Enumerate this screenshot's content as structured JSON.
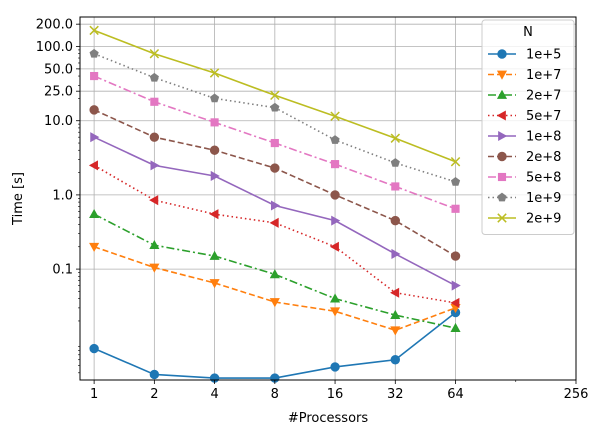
{
  "chart_data": {
    "type": "line",
    "xlabel": "#Processors",
    "ylabel": "Time [s]",
    "x_scale": "log2",
    "y_scale": "log",
    "x_ticks": [
      1,
      2,
      4,
      8,
      16,
      32,
      64,
      256
    ],
    "x_tick_labels": [
      "1",
      "2",
      "4",
      "8",
      "16",
      "32",
      "64",
      "256"
    ],
    "xlim": [
      0.85,
      256
    ],
    "y_ticks": [
      0.1,
      1,
      10,
      25,
      50,
      100,
      200
    ],
    "y_tick_labels": [
      "0.1",
      "1.0",
      "10.0",
      "25.0",
      "50.0",
      "100.0",
      "200.0"
    ],
    "ylim": [
      0.0032,
      250
    ],
    "grid": true,
    "legend": {
      "title": "N",
      "placement": "upper-right"
    },
    "x": [
      1,
      2,
      4,
      8,
      16,
      32,
      64
    ],
    "series": [
      {
        "name": "1e+5",
        "color": "#1f77b4",
        "linestyle": "solid",
        "marker": "circle",
        "values": [
          0.0085,
          0.0038,
          0.0034,
          0.0034,
          0.0048,
          0.006,
          0.026
        ]
      },
      {
        "name": "1e+7",
        "color": "#ff7f0e",
        "linestyle": "dashed",
        "marker": "triangle-down",
        "values": [
          0.2,
          0.105,
          0.065,
          0.036,
          0.027,
          0.015,
          0.03
        ]
      },
      {
        "name": "2e+7",
        "color": "#2ca02c",
        "linestyle": "dashdot",
        "marker": "triangle-up",
        "values": [
          0.55,
          0.21,
          0.15,
          0.085,
          0.04,
          0.024,
          0.016
        ]
      },
      {
        "name": "5e+7",
        "color": "#d62728",
        "linestyle": "dotted",
        "marker": "triangle-left",
        "values": [
          2.5,
          0.85,
          0.55,
          0.42,
          0.2,
          0.048,
          0.035
        ]
      },
      {
        "name": "1e+8",
        "color": "#9467bd",
        "linestyle": "solid",
        "marker": "triangle-right",
        "values": [
          6.0,
          2.5,
          1.8,
          0.72,
          0.45,
          0.16,
          0.06
        ]
      },
      {
        "name": "2e+8",
        "color": "#8c564b",
        "linestyle": "dashed",
        "marker": "circle",
        "values": [
          14.0,
          6.0,
          4.0,
          2.3,
          1.0,
          0.45,
          0.15
        ]
      },
      {
        "name": "5e+8",
        "color": "#e377c2",
        "linestyle": "dashdot",
        "marker": "square",
        "values": [
          40.0,
          18.0,
          9.5,
          5.0,
          2.6,
          1.3,
          0.65
        ]
      },
      {
        "name": "1e+9",
        "color": "#7f7f7f",
        "linestyle": "dotted",
        "marker": "pentagon",
        "values": [
          80.0,
          38.0,
          20.0,
          15.0,
          5.5,
          2.7,
          1.5
        ]
      },
      {
        "name": "2e+9",
        "color": "#bcbd22",
        "linestyle": "solid",
        "marker": "x",
        "values": [
          165.0,
          80.0,
          44.0,
          22.0,
          11.5,
          5.8,
          2.8
        ]
      }
    ]
  }
}
